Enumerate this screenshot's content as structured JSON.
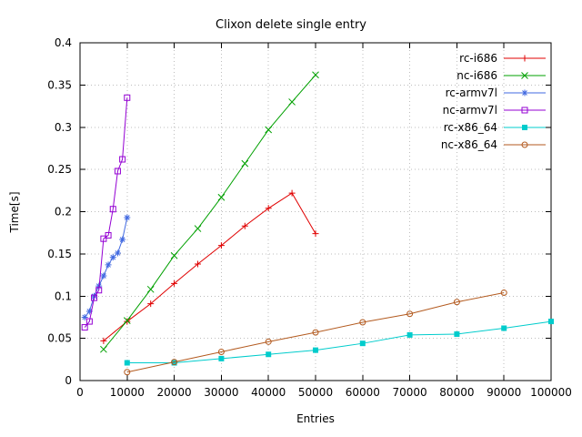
{
  "chart_data": {
    "type": "line",
    "title": "Clixon delete single entry",
    "xlabel": "Entries",
    "ylabel": "Time[s]",
    "xlim": [
      0,
      100000
    ],
    "ylim": [
      0,
      0.4
    ],
    "grid": true,
    "legend_position": "top-right-inside",
    "xticks": {
      "values": [
        0,
        10000,
        20000,
        30000,
        40000,
        50000,
        60000,
        70000,
        80000,
        90000,
        100000
      ],
      "labels": [
        "0",
        "10000",
        "20000",
        "30000",
        "40000",
        "50000",
        "60000",
        "70000",
        "80000",
        "90000",
        "100000"
      ]
    },
    "yticks": {
      "values": [
        0,
        0.05,
        0.1,
        0.15,
        0.2,
        0.25,
        0.3,
        0.35,
        0.4
      ],
      "labels": [
        "0",
        "0.05",
        "0.1",
        "0.15",
        "0.2",
        "0.25",
        "0.3",
        "0.35",
        "0.4"
      ]
    },
    "series": [
      {
        "name": "rc-i686",
        "color": "#e00000",
        "marker": "plus",
        "points": [
          [
            5000,
            0.047
          ],
          [
            10000,
            0.07
          ],
          [
            15000,
            0.091
          ],
          [
            20000,
            0.115
          ],
          [
            25000,
            0.138
          ],
          [
            30000,
            0.16
          ],
          [
            35000,
            0.183
          ],
          [
            40000,
            0.204
          ],
          [
            45000,
            0.222
          ],
          [
            50000,
            0.174
          ]
        ]
      },
      {
        "name": "nc-i686",
        "color": "#00a000",
        "marker": "cross",
        "points": [
          [
            5000,
            0.037
          ],
          [
            10000,
            0.071
          ],
          [
            15000,
            0.108
          ],
          [
            20000,
            0.148
          ],
          [
            25000,
            0.18
          ],
          [
            30000,
            0.217
          ],
          [
            35000,
            0.257
          ],
          [
            40000,
            0.297
          ],
          [
            45000,
            0.33
          ],
          [
            50000,
            0.362
          ]
        ]
      },
      {
        "name": "rc-armv7l",
        "color": "#4169e1",
        "marker": "asterisk",
        "points": [
          [
            1000,
            0.075
          ],
          [
            2000,
            0.082
          ],
          [
            3000,
            0.1
          ],
          [
            4000,
            0.112
          ],
          [
            5000,
            0.124
          ],
          [
            6000,
            0.137
          ],
          [
            7000,
            0.146
          ],
          [
            8000,
            0.151
          ],
          [
            9000,
            0.167
          ],
          [
            10000,
            0.193
          ]
        ]
      },
      {
        "name": "nc-armv7l",
        "color": "#9400d3",
        "marker": "square-open",
        "points": [
          [
            1000,
            0.063
          ],
          [
            2000,
            0.07
          ],
          [
            3000,
            0.098
          ],
          [
            4000,
            0.107
          ],
          [
            5000,
            0.168
          ],
          [
            6000,
            0.172
          ],
          [
            7000,
            0.203
          ],
          [
            8000,
            0.248
          ],
          [
            9000,
            0.262
          ],
          [
            10000,
            0.335
          ]
        ]
      },
      {
        "name": "rc-x86_64",
        "color": "#00cccc",
        "marker": "square-filled",
        "points": [
          [
            10000,
            0.021
          ],
          [
            20000,
            0.021
          ],
          [
            30000,
            0.026
          ],
          [
            40000,
            0.031
          ],
          [
            50000,
            0.036
          ],
          [
            60000,
            0.044
          ],
          [
            70000,
            0.054
          ],
          [
            80000,
            0.055
          ],
          [
            90000,
            0.062
          ],
          [
            100000,
            0.07
          ]
        ]
      },
      {
        "name": "nc-x86_64",
        "color": "#b35a1f",
        "marker": "circle-open",
        "points": [
          [
            10000,
            0.01
          ],
          [
            20000,
            0.022
          ],
          [
            30000,
            0.034
          ],
          [
            40000,
            0.046
          ],
          [
            50000,
            0.057
          ],
          [
            60000,
            0.069
          ],
          [
            70000,
            0.079
          ],
          [
            80000,
            0.093
          ],
          [
            90000,
            0.104
          ]
        ]
      }
    ]
  }
}
